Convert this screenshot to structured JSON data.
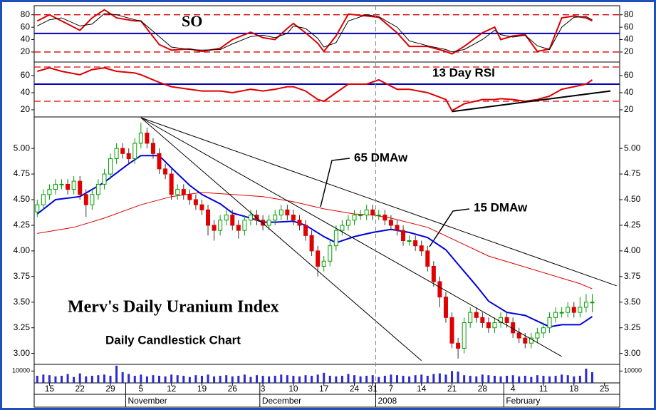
{
  "chart_data": [
    {
      "type": "line",
      "annotation": "SO",
      "xlim": [
        -2.5,
        93.5
      ],
      "ylim": [
        5,
        90
      ],
      "yticks": [
        20,
        40,
        60,
        80
      ],
      "x": [
        -2,
        0,
        2,
        5,
        7,
        9,
        11,
        14,
        15,
        18,
        20,
        23,
        25,
        28,
        30,
        33,
        35,
        37,
        39,
        40,
        42,
        44,
        45,
        47,
        49,
        52,
        54,
        57,
        59,
        62,
        65,
        66,
        68,
        71,
        73,
        74,
        76,
        78,
        80,
        82,
        84,
        86,
        88,
        89
      ],
      "series": [
        {
          "color": "#dd0000",
          "width": 2,
          "values": [
            70,
            80,
            70,
            55,
            75,
            88,
            75,
            70,
            70,
            32,
            23,
            25,
            21,
            26,
            40,
            52,
            43,
            40,
            58,
            66,
            51,
            34,
            21,
            46,
            81,
            78,
            76,
            51,
            29,
            29,
            21,
            17,
            29,
            51,
            60,
            40,
            46,
            48,
            21,
            25,
            75,
            78,
            75,
            70
          ]
        },
        {
          "color": "#000000",
          "width": 1,
          "values": [
            62,
            72,
            75,
            62,
            65,
            82,
            80,
            72,
            70,
            45,
            28,
            24,
            23,
            24,
            33,
            45,
            47,
            43,
            50,
            62,
            58,
            42,
            28,
            35,
            70,
            80,
            77,
            60,
            38,
            30,
            24,
            20,
            24,
            40,
            55,
            48,
            44,
            47,
            30,
            24,
            60,
            76,
            77,
            72
          ]
        }
      ],
      "reference_lines": [
        {
          "value": 80,
          "color": "#dd0000",
          "dashed": true
        },
        {
          "value": 20,
          "color": "#dd0000",
          "dashed": true
        },
        {
          "value": 50,
          "color": "#0000bb",
          "dashed": false
        }
      ]
    },
    {
      "type": "line",
      "annotation": "13 Day RSI",
      "xlim": [
        -2.5,
        93.5
      ],
      "ylim": [
        12.5,
        75
      ],
      "yticks": [
        20,
        40,
        60
      ],
      "x": [
        -2,
        0,
        2,
        5,
        7,
        9,
        11,
        14,
        15,
        18,
        20,
        23,
        25,
        28,
        30,
        33,
        35,
        37,
        39,
        40,
        42,
        44,
        45,
        47,
        49,
        52,
        54,
        57,
        59,
        62,
        65,
        66,
        68,
        71,
        73,
        74,
        76,
        78,
        80,
        82,
        84,
        86,
        88,
        89
      ],
      "series": [
        {
          "color": "#dd0000",
          "width": 2,
          "values": [
            65,
            69,
            65,
            61,
            67,
            69,
            65,
            63,
            61,
            52,
            47,
            44,
            42,
            42,
            40,
            44,
            42,
            44,
            47,
            47,
            42,
            32,
            30,
            40,
            50,
            50,
            55,
            44,
            44,
            40,
            32,
            19,
            27,
            32,
            32,
            33,
            32,
            30,
            32,
            36,
            44,
            47,
            50,
            55
          ]
        }
      ],
      "reference_lines": [
        {
          "value": 70,
          "color": "#dd0000",
          "dashed": true
        },
        {
          "value": 30,
          "color": "#dd0000",
          "dashed": true
        },
        {
          "value": 50,
          "color": "#0000bb",
          "dashed": false
        }
      ],
      "trendlines": [
        {
          "x": [
            66,
            92
          ],
          "values": [
            18,
            42
          ],
          "color": "#000000"
        }
      ]
    },
    {
      "type": "candlestick",
      "title": "Merv's Daily Uranium Index",
      "subtitle": "Daily Candlestick Chart",
      "xlim": [
        -2.5,
        93.5
      ],
      "ylim": [
        2.9,
        5.3
      ],
      "yticks": [
        {
          "value": 3,
          "label": "3.00"
        },
        {
          "value": 3.25,
          "label": "3.25"
        },
        {
          "value": 3.5,
          "label": "3.50"
        },
        {
          "value": 3.75,
          "label": "3.75"
        },
        {
          "value": 4,
          "label": "4.00"
        },
        {
          "value": 4.25,
          "label": "4.25"
        },
        {
          "value": 4.5,
          "label": "4.50"
        },
        {
          "value": 4.75,
          "label": "4.75"
        },
        {
          "value": 5,
          "label": "5.00"
        }
      ],
      "up_color": "#00a000",
      "down_color": "#e00000",
      "x": [
        -2,
        -1,
        0,
        1,
        2,
        3,
        4,
        5,
        6,
        7,
        8,
        9,
        10,
        11,
        12,
        13,
        14,
        15,
        16,
        17,
        18,
        19,
        20,
        21,
        22,
        23,
        24,
        25,
        26,
        27,
        28,
        29,
        30,
        31,
        32,
        33,
        34,
        35,
        36,
        37,
        38,
        39,
        40,
        41,
        42,
        43,
        44,
        45,
        46,
        47,
        48,
        49,
        50,
        51,
        52,
        53,
        54,
        55,
        56,
        57,
        58,
        59,
        60,
        61,
        62,
        63,
        64,
        65,
        66,
        67,
        68,
        69,
        70,
        71,
        72,
        73,
        74,
        75,
        76,
        77,
        78,
        79,
        80,
        81,
        82,
        83,
        84,
        85,
        86,
        87,
        88,
        89
      ],
      "open": [
        4.38,
        4.45,
        4.55,
        4.6,
        4.65,
        4.65,
        4.6,
        4.68,
        4.55,
        4.45,
        4.55,
        4.65,
        4.75,
        4.9,
        5.0,
        4.95,
        4.9,
        5.05,
        5.15,
        5.05,
        4.95,
        4.8,
        4.75,
        4.55,
        4.6,
        4.55,
        4.5,
        4.45,
        4.4,
        4.25,
        4.2,
        4.3,
        4.35,
        4.25,
        4.2,
        4.3,
        4.35,
        4.3,
        4.25,
        4.3,
        4.35,
        4.4,
        4.35,
        4.3,
        4.25,
        4.15,
        4.0,
        3.85,
        3.9,
        4.05,
        4.2,
        4.25,
        4.3,
        4.35,
        4.35,
        4.4,
        4.35,
        4.35,
        4.3,
        4.25,
        4.2,
        4.1,
        4.1,
        4.05,
        4.0,
        3.85,
        3.7,
        3.55,
        3.35,
        3.1,
        3.05,
        3.3,
        3.4,
        3.35,
        3.3,
        3.25,
        3.3,
        3.35,
        3.3,
        3.2,
        3.15,
        3.1,
        3.15,
        3.2,
        3.25,
        3.35,
        3.4,
        3.4,
        3.45,
        3.4,
        3.45,
        3.5
      ],
      "high": [
        4.5,
        4.6,
        4.65,
        4.7,
        4.7,
        4.7,
        4.73,
        4.73,
        4.6,
        4.6,
        4.7,
        4.8,
        4.95,
        5.05,
        5.05,
        5.0,
        5.1,
        5.25,
        5.2,
        5.1,
        5.0,
        4.85,
        4.8,
        4.65,
        4.65,
        4.6,
        4.55,
        4.5,
        4.45,
        4.3,
        4.35,
        4.4,
        4.4,
        4.3,
        4.35,
        4.4,
        4.4,
        4.35,
        4.35,
        4.4,
        4.45,
        4.45,
        4.4,
        4.35,
        4.3,
        4.2,
        4.05,
        3.95,
        4.1,
        4.25,
        4.3,
        4.35,
        4.4,
        4.4,
        4.45,
        4.45,
        4.4,
        4.4,
        4.35,
        4.3,
        4.25,
        4.15,
        4.15,
        4.1,
        4.05,
        3.9,
        3.75,
        3.6,
        3.4,
        3.15,
        3.35,
        3.45,
        3.45,
        3.4,
        3.35,
        3.35,
        3.4,
        3.4,
        3.35,
        3.25,
        3.2,
        3.2,
        3.25,
        3.3,
        3.4,
        3.45,
        3.45,
        3.5,
        3.5,
        3.55,
        3.58,
        3.58
      ],
      "low": [
        4.33,
        4.4,
        4.5,
        4.55,
        4.6,
        4.55,
        4.55,
        4.5,
        4.33,
        4.4,
        4.5,
        4.6,
        4.7,
        4.85,
        4.9,
        4.85,
        4.85,
        5.0,
        5.0,
        4.9,
        4.75,
        4.7,
        4.5,
        4.5,
        4.5,
        4.45,
        4.4,
        4.35,
        4.15,
        4.1,
        4.15,
        4.25,
        4.2,
        4.12,
        4.15,
        4.25,
        4.25,
        4.2,
        4.2,
        4.25,
        4.3,
        4.3,
        4.25,
        4.2,
        4.1,
        3.95,
        3.75,
        3.8,
        3.85,
        4.0,
        4.15,
        4.2,
        4.25,
        4.3,
        4.3,
        4.3,
        4.3,
        4.25,
        4.2,
        4.15,
        4.05,
        4.05,
        4.0,
        3.95,
        3.8,
        3.65,
        3.45,
        3.3,
        3.05,
        2.95,
        3.0,
        3.25,
        3.3,
        3.25,
        3.2,
        3.2,
        3.25,
        3.25,
        3.15,
        3.1,
        3.05,
        3.05,
        3.1,
        3.15,
        3.2,
        3.3,
        3.35,
        3.35,
        3.35,
        3.35,
        3.4,
        3.4
      ],
      "close": [
        4.45,
        4.55,
        4.6,
        4.65,
        4.65,
        4.6,
        4.68,
        4.55,
        4.45,
        4.55,
        4.65,
        4.75,
        4.9,
        5.0,
        4.95,
        4.9,
        5.05,
        5.15,
        5.05,
        4.95,
        4.8,
        4.75,
        4.55,
        4.6,
        4.55,
        4.5,
        4.45,
        4.4,
        4.25,
        4.2,
        4.3,
        4.35,
        4.25,
        4.2,
        4.3,
        4.35,
        4.3,
        4.25,
        4.3,
        4.35,
        4.4,
        4.35,
        4.3,
        4.25,
        4.15,
        4.0,
        3.85,
        3.9,
        4.05,
        4.2,
        4.25,
        4.3,
        4.35,
        4.35,
        4.4,
        4.35,
        4.35,
        4.3,
        4.25,
        4.2,
        4.1,
        4.1,
        4.05,
        4.0,
        3.85,
        3.7,
        3.55,
        3.35,
        3.1,
        3.05,
        3.3,
        3.4,
        3.35,
        3.3,
        3.25,
        3.3,
        3.35,
        3.3,
        3.2,
        3.15,
        3.1,
        3.15,
        3.2,
        3.25,
        3.35,
        3.4,
        3.4,
        3.45,
        3.4,
        3.45,
        3.5,
        3.5
      ],
      "series": [
        {
          "name": "65 DMAw",
          "color": "#dd0000",
          "width": 1,
          "x": [
            -2,
            4,
            9,
            15,
            20,
            25,
            30,
            35,
            40,
            45,
            50,
            53,
            56,
            62,
            67,
            72,
            77,
            82,
            87,
            89
          ],
          "values": [
            4.17,
            4.23,
            4.32,
            4.45,
            4.53,
            4.57,
            4.55,
            4.53,
            4.48,
            4.41,
            4.36,
            4.35,
            4.32,
            4.23,
            4.09,
            3.95,
            3.86,
            3.77,
            3.68,
            3.63
          ]
        },
        {
          "name": "15 DMAw",
          "color": "#0000dd",
          "width": 2,
          "x": [
            -2,
            1,
            5,
            9,
            13,
            15,
            18,
            20,
            23,
            25,
            28,
            30,
            33,
            35,
            37,
            40,
            42,
            45,
            47,
            50,
            53,
            56,
            59,
            62,
            65,
            67,
            70,
            72,
            75,
            78,
            82,
            84,
            87,
            89
          ],
          "values": [
            4.36,
            4.5,
            4.53,
            4.67,
            4.85,
            4.93,
            4.93,
            4.81,
            4.64,
            4.55,
            4.46,
            4.37,
            4.32,
            4.28,
            4.28,
            4.29,
            4.25,
            4.14,
            4.08,
            4.14,
            4.18,
            4.21,
            4.18,
            4.13,
            4.01,
            3.87,
            3.66,
            3.51,
            3.4,
            3.37,
            3.26,
            3.28,
            3.28,
            3.36
          ]
        }
      ],
      "trendlines": [
        {
          "x": [
            15,
            61
          ],
          "values": [
            5.3,
            2.93
          ],
          "color": "#000000"
        },
        {
          "x": [
            15,
            84
          ],
          "values": [
            5.3,
            2.97
          ],
          "color": "#000000"
        },
        {
          "x": [
            15,
            93
          ],
          "values": [
            5.3,
            3.66
          ],
          "color": "#000000"
        }
      ]
    },
    {
      "type": "bar",
      "xlim": [
        -2.5,
        93.5
      ],
      "ylim": [
        0,
        15000
      ],
      "yticks": [
        10000
      ],
      "color": "#2a2ad0",
      "x": [
        -2,
        -1,
        0,
        1,
        2,
        3,
        4,
        5,
        6,
        7,
        8,
        9,
        10,
        11,
        12,
        13,
        14,
        15,
        16,
        17,
        18,
        19,
        20,
        21,
        22,
        23,
        24,
        25,
        26,
        27,
        28,
        29,
        30,
        31,
        32,
        33,
        34,
        35,
        36,
        37,
        38,
        39,
        40,
        41,
        42,
        43,
        44,
        45,
        46,
        47,
        48,
        49,
        50,
        51,
        52,
        53,
        54,
        55,
        56,
        57,
        58,
        59,
        60,
        61,
        62,
        63,
        64,
        65,
        66,
        67,
        68,
        69,
        70,
        71,
        72,
        73,
        74,
        75,
        76,
        77,
        78,
        79,
        80,
        81,
        82,
        83,
        84,
        85,
        86,
        87,
        88,
        89
      ],
      "values": [
        6000,
        7000,
        6500,
        5500,
        6000,
        7500,
        5000,
        8000,
        5500,
        6000,
        6500,
        7000,
        6000,
        14500,
        9000,
        7500,
        6000,
        7000,
        5500,
        6500,
        6000,
        5500,
        7000,
        6500,
        6000,
        5000,
        6500,
        6000,
        7000,
        5500,
        6000,
        6500,
        5500,
        6000,
        7000,
        5000,
        6500,
        6000,
        5500,
        6000,
        7000,
        6500,
        6000,
        5500,
        6500,
        6000,
        7000,
        8500,
        6000,
        5500,
        6000,
        7500,
        6500,
        5500,
        6000,
        6500,
        5000,
        6000,
        7000,
        6500,
        6000,
        5500,
        6500,
        7000,
        6000,
        7500,
        8000,
        7000,
        10000,
        9500,
        6500,
        6000,
        5500,
        7000,
        6500,
        6000,
        5500,
        6000,
        6500,
        5500,
        6000,
        5000,
        6500,
        6000,
        5500,
        6000,
        7000,
        6500,
        5500,
        6000,
        12000,
        9000
      ],
      "xticks": [
        {
          "value": 0,
          "label": "15"
        },
        {
          "value": 5,
          "label": "22"
        },
        {
          "value": 10,
          "label": "29"
        },
        {
          "value": 15,
          "label": "5"
        },
        {
          "value": 20,
          "label": "12"
        },
        {
          "value": 25,
          "label": "19"
        },
        {
          "value": 30,
          "label": "26"
        },
        {
          "value": 35,
          "label": "3"
        },
        {
          "value": 40,
          "label": "10"
        },
        {
          "value": 45,
          "label": "17"
        },
        {
          "value": 50,
          "label": "24"
        },
        {
          "value": 53,
          "label": "31"
        },
        {
          "value": 56,
          "label": "7"
        },
        {
          "value": 61,
          "label": "14"
        },
        {
          "value": 66,
          "label": "21"
        },
        {
          "value": 71,
          "label": "28"
        },
        {
          "value": 76,
          "label": "4"
        },
        {
          "value": 81,
          "label": "11"
        },
        {
          "value": 86,
          "label": "18"
        },
        {
          "value": 91,
          "label": "25"
        }
      ],
      "month_ticks": [
        {
          "value": 12.5,
          "label": "November"
        },
        {
          "value": 34.5,
          "label": "December"
        },
        {
          "value": 53.5,
          "label": "2008",
          "dashed_line": true
        },
        {
          "value": 74.5,
          "label": "February"
        }
      ]
    }
  ]
}
